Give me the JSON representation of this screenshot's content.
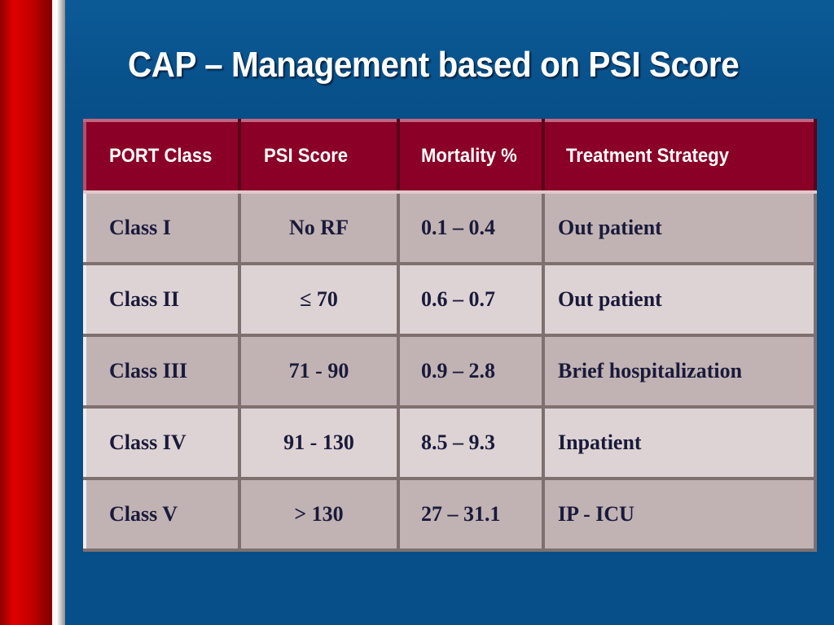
{
  "slide": {
    "title": "CAP – Management based on PSI Score"
  },
  "table": {
    "headers": [
      "PORT Class",
      "PSI Score",
      "Mortality %",
      "Treatment Strategy"
    ],
    "rows": [
      [
        "Class I",
        "No RF",
        "0.1 – 0.4",
        "Out patient"
      ],
      [
        "Class II",
        "≤ 70",
        "0.6 – 0.7",
        "Out patient"
      ],
      [
        "Class III",
        "71 - 90",
        "0.9 – 2.8",
        "Brief  hospitalization"
      ],
      [
        "Class IV",
        "91 - 130",
        "8.5 – 9.3",
        "Inpatient"
      ],
      [
        "Class V",
        "> 130",
        "27 – 31.1",
        "IP - ICU"
      ]
    ]
  },
  "colors": {
    "background": "#074f88",
    "header_fill": "#8a0026",
    "row_fill_dark": "#c1b3b4",
    "row_fill_light": "#ddd3d4",
    "accent_bar": "#e00000"
  }
}
